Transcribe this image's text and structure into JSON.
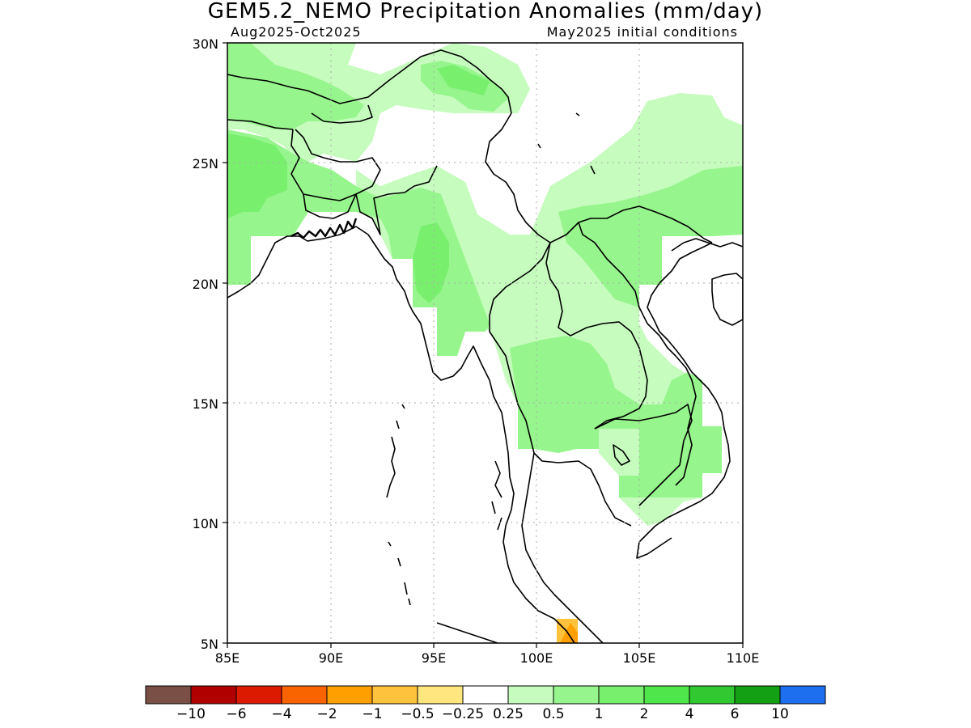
{
  "title": "GEM5.2_NEMO Precipitation Anomalies (mm/day)",
  "period": "Aug2025-Oct2025",
  "init": "May2025 initial conditions",
  "lon_ticks": [
    "85E",
    "90E",
    "95E",
    "100E",
    "105E",
    "110E"
  ],
  "lat_ticks": [
    "30N",
    "25N",
    "20N",
    "15N",
    "10N",
    "5N"
  ],
  "map_extent": {
    "lon": [
      85,
      110
    ],
    "lat": [
      5,
      30
    ]
  },
  "grid": "dotted",
  "colorbar": {
    "colors": [
      "#7a5046",
      "#b10000",
      "#dc1a00",
      "#fa6400",
      "#ff9f00",
      "#ffc23c",
      "#ffe67e",
      "#ffffff",
      "#c6fcbe",
      "#96f58c",
      "#78f06e",
      "#4fe64b",
      "#32c832",
      "#14a014",
      "#1e6ef0"
    ],
    "labels": [
      "-10",
      "-6",
      "-4",
      "-2",
      "-1",
      "-0.5",
      "-0.25",
      "0.25",
      "0.5",
      "1",
      "2",
      "4",
      "6",
      "10"
    ]
  }
}
